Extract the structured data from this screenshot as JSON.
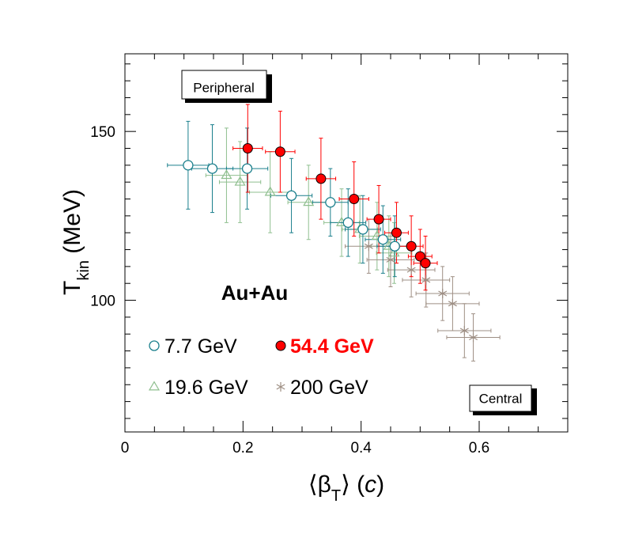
{
  "chart_data": {
    "type": "scatter",
    "title": "",
    "system_label": "Au+Au",
    "xlabel": {
      "open": "⟨β",
      "sub": "T",
      "close": "⟩ (",
      "unit": "c",
      "end": ")"
    },
    "ylabel": {
      "main": "T",
      "sub": "kin",
      "rest": " (MeV)"
    },
    "xlim": [
      0,
      0.75
    ],
    "ylim": [
      61,
      173
    ],
    "xticks": [
      0,
      0.2,
      0.4,
      0.6
    ],
    "xtick_labels": [
      "0",
      "0.2",
      "0.4",
      "0.6"
    ],
    "yticks": [
      100,
      150
    ],
    "ytick_labels": [
      "100",
      "150"
    ],
    "grid": false,
    "legend_placement": "lower-left",
    "annotations": {
      "peripheral": "Peripheral",
      "central": "Central"
    },
    "colors": {
      "7.7": "#1a7f8c",
      "19.6": "#8fbf8f",
      "54.4": "#ff0000",
      "200": "#9e8f84"
    },
    "series": [
      {
        "name": "7.7 GeV",
        "marker": "open-circle",
        "color": "#1a7f8c",
        "label_bold": false,
        "points": [
          {
            "x": 0.107,
            "y": 140,
            "xerr": 0.035,
            "yerr": 13
          },
          {
            "x": 0.148,
            "y": 139,
            "xerr": 0.035,
            "yerr": 13
          },
          {
            "x": 0.207,
            "y": 139,
            "xerr": 0.035,
            "yerr": 12
          },
          {
            "x": 0.282,
            "y": 131,
            "xerr": 0.035,
            "yerr": 11
          },
          {
            "x": 0.348,
            "y": 129,
            "xerr": 0.03,
            "yerr": 10
          },
          {
            "x": 0.378,
            "y": 123,
            "xerr": 0.03,
            "yerr": 10
          },
          {
            "x": 0.403,
            "y": 121,
            "xerr": 0.03,
            "yerr": 10
          },
          {
            "x": 0.437,
            "y": 118,
            "xerr": 0.03,
            "yerr": 10
          },
          {
            "x": 0.457,
            "y": 116,
            "xerr": 0.03,
            "yerr": 9
          }
        ]
      },
      {
        "name": "19.6 GeV",
        "marker": "open-triangle",
        "color": "#8fbf8f",
        "label_bold": false,
        "points": [
          {
            "x": 0.172,
            "y": 137,
            "xerr": 0.035,
            "yerr": 14
          },
          {
            "x": 0.195,
            "y": 135,
            "xerr": 0.035,
            "yerr": 12
          },
          {
            "x": 0.246,
            "y": 132,
            "xerr": 0.035,
            "yerr": 12
          },
          {
            "x": 0.311,
            "y": 129,
            "xerr": 0.035,
            "yerr": 11
          },
          {
            "x": 0.367,
            "y": 123,
            "xerr": 0.03,
            "yerr": 10
          },
          {
            "x": 0.398,
            "y": 121,
            "xerr": 0.03,
            "yerr": 10
          },
          {
            "x": 0.427,
            "y": 119,
            "xerr": 0.03,
            "yerr": 10
          },
          {
            "x": 0.447,
            "y": 116,
            "xerr": 0.03,
            "yerr": 9
          },
          {
            "x": 0.456,
            "y": 114,
            "xerr": 0.03,
            "yerr": 9
          }
        ]
      },
      {
        "name": "54.4 GeV",
        "marker": "filled-circle",
        "color": "#ff0000",
        "label_bold": true,
        "points": [
          {
            "x": 0.208,
            "y": 145,
            "xerr": 0.025,
            "yerr": 13
          },
          {
            "x": 0.263,
            "y": 144,
            "xerr": 0.025,
            "yerr": 12
          },
          {
            "x": 0.332,
            "y": 136,
            "xerr": 0.025,
            "yerr": 12
          },
          {
            "x": 0.388,
            "y": 130,
            "xerr": 0.025,
            "yerr": 11
          },
          {
            "x": 0.43,
            "y": 124,
            "xerr": 0.02,
            "yerr": 10
          },
          {
            "x": 0.46,
            "y": 120,
            "xerr": 0.02,
            "yerr": 9
          },
          {
            "x": 0.485,
            "y": 116,
            "xerr": 0.02,
            "yerr": 9
          },
          {
            "x": 0.5,
            "y": 113,
            "xerr": 0.02,
            "yerr": 8
          },
          {
            "x": 0.509,
            "y": 111,
            "xerr": 0.02,
            "yerr": 8
          }
        ]
      },
      {
        "name": "200 GeV",
        "marker": "star",
        "color": "#9e8f84",
        "label_bold": false,
        "points": [
          {
            "x": 0.413,
            "y": 116,
            "xerr": 0.04,
            "yerr": 8
          },
          {
            "x": 0.45,
            "y": 112,
            "xerr": 0.04,
            "yerr": 8
          },
          {
            "x": 0.485,
            "y": 109,
            "xerr": 0.04,
            "yerr": 8
          },
          {
            "x": 0.51,
            "y": 106,
            "xerr": 0.04,
            "yerr": 8
          },
          {
            "x": 0.538,
            "y": 102,
            "xerr": 0.045,
            "yerr": 8
          },
          {
            "x": 0.555,
            "y": 99,
            "xerr": 0.045,
            "yerr": 8
          },
          {
            "x": 0.575,
            "y": 91,
            "xerr": 0.045,
            "yerr": 8
          },
          {
            "x": 0.59,
            "y": 89,
            "xerr": 0.045,
            "yerr": 7
          }
        ]
      }
    ]
  }
}
